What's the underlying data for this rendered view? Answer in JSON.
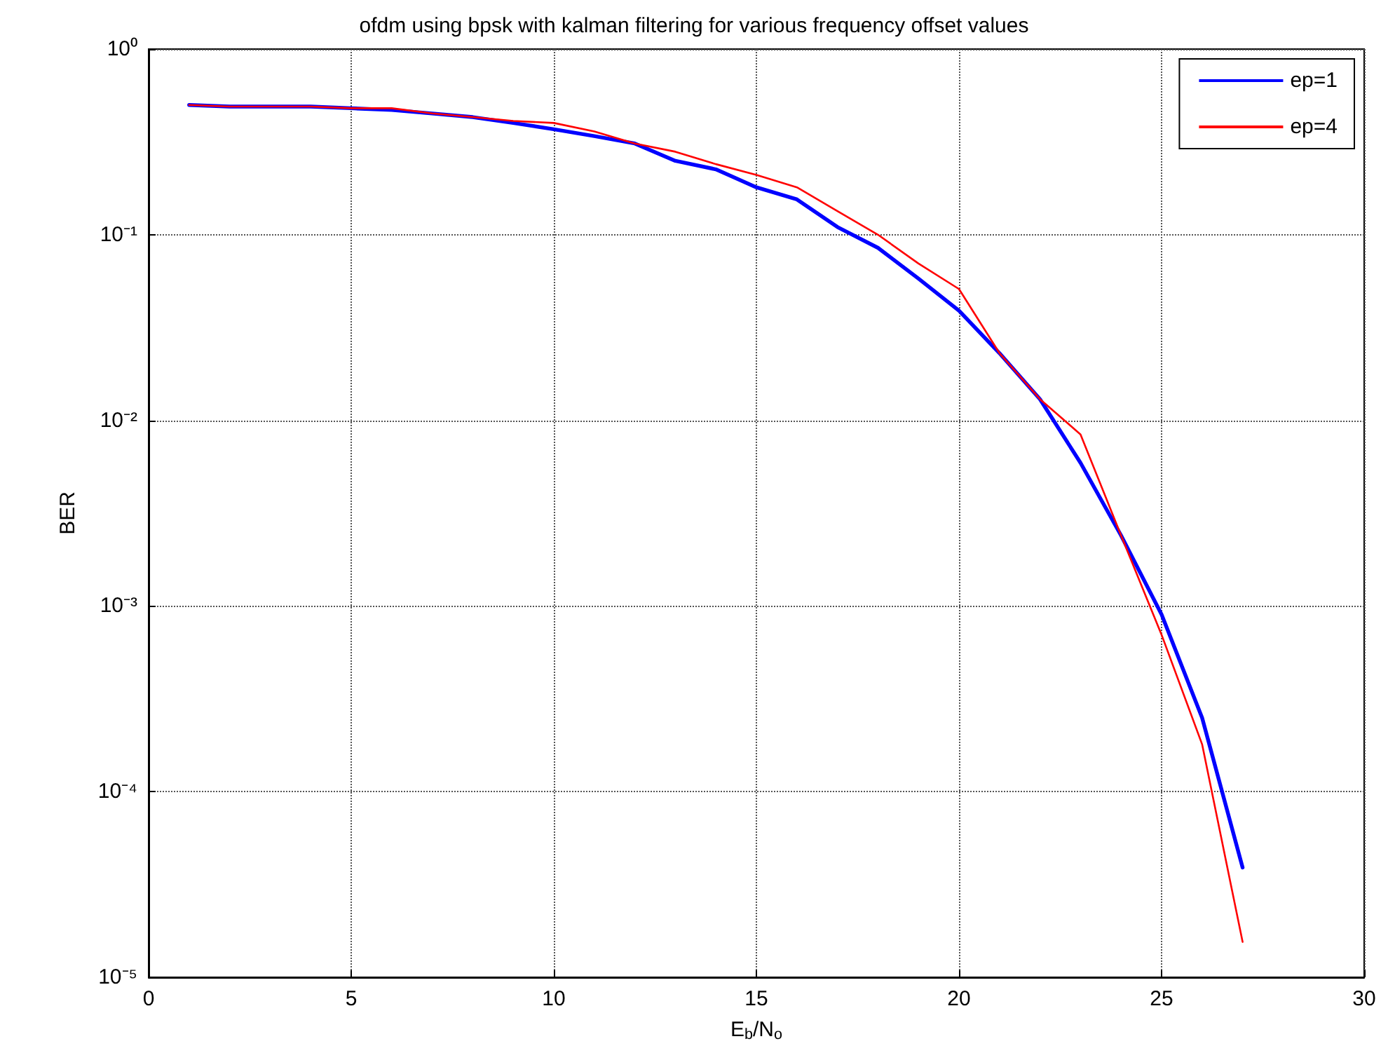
{
  "chart_data": {
    "type": "line",
    "title": "ofdm using bpsk with kalman filtering for various frequency offset values",
    "xlabel": "E$_{b}$/N$_{o}$",
    "ylabel": "BER",
    "x": [
      1,
      2,
      3,
      4,
      5,
      6,
      7,
      8,
      9,
      10,
      11,
      12,
      13,
      14,
      15,
      16,
      17,
      18,
      19,
      20,
      21,
      22,
      23,
      24,
      25,
      26,
      27
    ],
    "series": [
      {
        "name": "ep=1",
        "color": "#0000ff",
        "values": [
          0.5,
          0.49,
          0.49,
          0.49,
          0.48,
          0.47,
          0.45,
          0.43,
          0.4,
          0.37,
          0.34,
          0.31,
          0.25,
          0.225,
          0.18,
          0.155,
          0.11,
          0.085,
          0.058,
          0.039,
          0.023,
          0.013,
          0.0059,
          0.0024,
          0.0009,
          0.00025,
          3.9e-05
        ]
      },
      {
        "name": "ep=4",
        "color": "#ff0000",
        "values": [
          0.5,
          0.49,
          0.49,
          0.49,
          0.48,
          0.48,
          0.45,
          0.43,
          0.41,
          0.4,
          0.36,
          0.31,
          0.28,
          0.24,
          0.21,
          0.18,
          0.134,
          0.1,
          0.07,
          0.051,
          0.023,
          0.013,
          0.0084,
          0.0024,
          0.0007,
          0.00018,
          1.55e-05
        ]
      }
    ],
    "xlim": [
      0,
      30
    ],
    "xticks": [
      0,
      5,
      10,
      15,
      20,
      25,
      30
    ],
    "ylim": [
      1e-05,
      1
    ],
    "yticks": [
      {
        "value": 1e-05,
        "label": "10⁻⁵"
      },
      {
        "value": 0.0001,
        "label": "10⁻⁴"
      },
      {
        "value": 0.001,
        "label": "10⁻³"
      },
      {
        "value": 0.01,
        "label": "10⁻²"
      },
      {
        "value": 0.1,
        "label": "10⁻¹"
      },
      {
        "value": 1,
        "label": "10⁰"
      }
    ],
    "log": "y",
    "grid": true,
    "legend": "top right",
    "marker": "none",
    "line_style": "solid"
  }
}
